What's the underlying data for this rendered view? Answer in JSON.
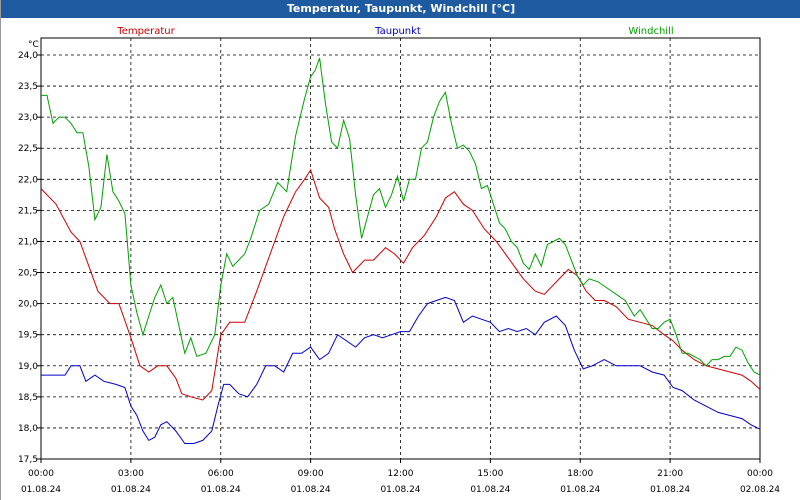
{
  "window": {
    "title": "Temperatur, Taupunkt, Windchill [°C]"
  },
  "chart_data": {
    "type": "line",
    "title": "Temperatur, Taupunkt, Windchill [°C]",
    "ylabel": "°C",
    "ylim": [
      17.5,
      24.0
    ],
    "ytick_labels": [
      "17,5",
      "18,0",
      "18,5",
      "19,0",
      "19,5",
      "20,0",
      "20,5",
      "21,0",
      "21,5",
      "22,0",
      "22,5",
      "23,0",
      "23,5",
      "24,0"
    ],
    "x_tick_labels": [
      {
        "time": "00:00",
        "date": "01.08.24"
      },
      {
        "time": "03:00",
        "date": "01.08.24"
      },
      {
        "time": "06:00",
        "date": "01.08.24"
      },
      {
        "time": "09:00",
        "date": "01.08.24"
      },
      {
        "time": "12:00",
        "date": "01.08.24"
      },
      {
        "time": "15:00",
        "date": "01.08.24"
      },
      {
        "time": "18:00",
        "date": "01.08.24"
      },
      {
        "time": "21:00",
        "date": "01.08.24"
      },
      {
        "time": "00:00",
        "date": "02.08.24"
      }
    ],
    "x_unit": "hours since 01.08.24 00:00",
    "grid": true,
    "series": [
      {
        "name": "Temperatur",
        "color": "#cc0000",
        "points": [
          [
            0,
            21.85
          ],
          [
            0.5,
            21.6
          ],
          [
            1,
            21.15
          ],
          [
            1.3,
            21.0
          ],
          [
            1.6,
            20.6
          ],
          [
            1.9,
            20.2
          ],
          [
            2.3,
            20.0
          ],
          [
            2.6,
            20.0
          ],
          [
            3,
            19.45
          ],
          [
            3.3,
            19.0
          ],
          [
            3.6,
            18.9
          ],
          [
            3.9,
            19.0
          ],
          [
            4.2,
            19.0
          ],
          [
            4.5,
            18.8
          ],
          [
            4.7,
            18.55
          ],
          [
            5,
            18.5
          ],
          [
            5.4,
            18.45
          ],
          [
            5.7,
            18.6
          ],
          [
            6,
            19.5
          ],
          [
            6.3,
            19.7
          ],
          [
            6.8,
            19.7
          ],
          [
            7.2,
            20.2
          ],
          [
            7.5,
            20.6
          ],
          [
            7.8,
            21.0
          ],
          [
            8.1,
            21.4
          ],
          [
            8.5,
            21.8
          ],
          [
            8.8,
            22.0
          ],
          [
            9,
            22.15
          ],
          [
            9.3,
            21.7
          ],
          [
            9.6,
            21.55
          ],
          [
            9.8,
            21.2
          ],
          [
            10.1,
            20.8
          ],
          [
            10.4,
            20.5
          ],
          [
            10.8,
            20.7
          ],
          [
            11.1,
            20.7
          ],
          [
            11.5,
            20.9
          ],
          [
            11.8,
            20.8
          ],
          [
            12.1,
            20.65
          ],
          [
            12.4,
            20.9
          ],
          [
            12.8,
            21.1
          ],
          [
            13.2,
            21.4
          ],
          [
            13.5,
            21.7
          ],
          [
            13.8,
            21.8
          ],
          [
            14.1,
            21.6
          ],
          [
            14.4,
            21.5
          ],
          [
            14.8,
            21.2
          ],
          [
            15.2,
            21.0
          ],
          [
            15.5,
            20.8
          ],
          [
            15.8,
            20.6
          ],
          [
            16.1,
            20.4
          ],
          [
            16.5,
            20.2
          ],
          [
            16.8,
            20.15
          ],
          [
            17.2,
            20.35
          ],
          [
            17.6,
            20.55
          ],
          [
            17.9,
            20.45
          ],
          [
            18.2,
            20.2
          ],
          [
            18.5,
            20.05
          ],
          [
            18.8,
            20.05
          ],
          [
            19.2,
            19.95
          ],
          [
            19.6,
            19.75
          ],
          [
            20,
            19.7
          ],
          [
            20.4,
            19.65
          ],
          [
            20.8,
            19.5
          ],
          [
            21.1,
            19.4
          ],
          [
            21.4,
            19.25
          ],
          [
            21.8,
            19.1
          ],
          [
            22.2,
            19.0
          ],
          [
            22.6,
            18.95
          ],
          [
            23,
            18.9
          ],
          [
            23.4,
            18.85
          ],
          [
            23.7,
            18.75
          ],
          [
            24,
            18.62
          ]
        ]
      },
      {
        "name": "Taupunkt",
        "color": "#0000cc",
        "points": [
          [
            0,
            18.85
          ],
          [
            0.5,
            18.85
          ],
          [
            0.8,
            18.85
          ],
          [
            1,
            19.0
          ],
          [
            1.3,
            19.0
          ],
          [
            1.5,
            18.75
          ],
          [
            1.8,
            18.85
          ],
          [
            2.1,
            18.75
          ],
          [
            2.5,
            18.7
          ],
          [
            2.8,
            18.65
          ],
          [
            3,
            18.35
          ],
          [
            3.2,
            18.2
          ],
          [
            3.4,
            17.95
          ],
          [
            3.6,
            17.8
          ],
          [
            3.8,
            17.85
          ],
          [
            4,
            18.05
          ],
          [
            4.2,
            18.1
          ],
          [
            4.5,
            17.95
          ],
          [
            4.8,
            17.75
          ],
          [
            5.1,
            17.75
          ],
          [
            5.4,
            17.8
          ],
          [
            5.7,
            17.95
          ],
          [
            5.9,
            18.35
          ],
          [
            6.1,
            18.7
          ],
          [
            6.3,
            18.7
          ],
          [
            6.6,
            18.55
          ],
          [
            6.9,
            18.5
          ],
          [
            7.2,
            18.7
          ],
          [
            7.5,
            19.0
          ],
          [
            7.8,
            19.0
          ],
          [
            8.1,
            18.9
          ],
          [
            8.4,
            19.2
          ],
          [
            8.7,
            19.2
          ],
          [
            9,
            19.3
          ],
          [
            9.3,
            19.1
          ],
          [
            9.6,
            19.2
          ],
          [
            9.9,
            19.5
          ],
          [
            10.2,
            19.4
          ],
          [
            10.5,
            19.3
          ],
          [
            10.8,
            19.45
          ],
          [
            11.1,
            19.5
          ],
          [
            11.4,
            19.45
          ],
          [
            11.7,
            19.5
          ],
          [
            12,
            19.55
          ],
          [
            12.3,
            19.55
          ],
          [
            12.6,
            19.8
          ],
          [
            12.9,
            20.0
          ],
          [
            13.2,
            20.05
          ],
          [
            13.5,
            20.1
          ],
          [
            13.8,
            20.05
          ],
          [
            14.1,
            19.7
          ],
          [
            14.4,
            19.8
          ],
          [
            14.7,
            19.75
          ],
          [
            15,
            19.7
          ],
          [
            15.3,
            19.55
          ],
          [
            15.6,
            19.6
          ],
          [
            15.9,
            19.55
          ],
          [
            16.2,
            19.6
          ],
          [
            16.5,
            19.5
          ],
          [
            16.8,
            19.7
          ],
          [
            17.2,
            19.8
          ],
          [
            17.5,
            19.65
          ],
          [
            17.8,
            19.25
          ],
          [
            18.1,
            18.95
          ],
          [
            18.4,
            19.0
          ],
          [
            18.8,
            19.1
          ],
          [
            19.2,
            19.0
          ],
          [
            19.6,
            19.0
          ],
          [
            20,
            19.0
          ],
          [
            20.4,
            18.9
          ],
          [
            20.8,
            18.85
          ],
          [
            21.1,
            18.65
          ],
          [
            21.4,
            18.6
          ],
          [
            21.8,
            18.45
          ],
          [
            22.2,
            18.35
          ],
          [
            22.6,
            18.25
          ],
          [
            23,
            18.2
          ],
          [
            23.4,
            18.15
          ],
          [
            23.7,
            18.05
          ],
          [
            24,
            17.98
          ]
        ]
      },
      {
        "name": "Windchill",
        "color": "#00a000",
        "points": [
          [
            0,
            23.35
          ],
          [
            0.2,
            23.35
          ],
          [
            0.4,
            22.9
          ],
          [
            0.6,
            23.0
          ],
          [
            0.8,
            23.0
          ],
          [
            1,
            22.9
          ],
          [
            1.2,
            22.75
          ],
          [
            1.4,
            22.75
          ],
          [
            1.6,
            22.2
          ],
          [
            1.8,
            21.35
          ],
          [
            2,
            21.55
          ],
          [
            2.2,
            22.4
          ],
          [
            2.4,
            21.8
          ],
          [
            2.6,
            21.65
          ],
          [
            2.8,
            21.45
          ],
          [
            3,
            20.3
          ],
          [
            3.2,
            19.85
          ],
          [
            3.4,
            19.5
          ],
          [
            3.6,
            19.8
          ],
          [
            3.8,
            20.1
          ],
          [
            4,
            20.3
          ],
          [
            4.2,
            20.0
          ],
          [
            4.4,
            20.1
          ],
          [
            4.6,
            19.65
          ],
          [
            4.8,
            19.2
          ],
          [
            5,
            19.45
          ],
          [
            5.2,
            19.15
          ],
          [
            5.5,
            19.2
          ],
          [
            5.8,
            19.5
          ],
          [
            6,
            20.3
          ],
          [
            6.2,
            20.8
          ],
          [
            6.4,
            20.6
          ],
          [
            6.6,
            20.7
          ],
          [
            6.8,
            20.8
          ],
          [
            7,
            21.05
          ],
          [
            7.3,
            21.5
          ],
          [
            7.6,
            21.6
          ],
          [
            7.9,
            21.95
          ],
          [
            8.2,
            21.8
          ],
          [
            8.5,
            22.7
          ],
          [
            8.8,
            23.3
          ],
          [
            9,
            23.65
          ],
          [
            9.15,
            23.75
          ],
          [
            9.3,
            23.95
          ],
          [
            9.5,
            23.2
          ],
          [
            9.7,
            22.6
          ],
          [
            9.9,
            22.5
          ],
          [
            10.1,
            22.95
          ],
          [
            10.3,
            22.65
          ],
          [
            10.5,
            21.75
          ],
          [
            10.7,
            21.05
          ],
          [
            10.9,
            21.4
          ],
          [
            11.1,
            21.75
          ],
          [
            11.3,
            21.85
          ],
          [
            11.5,
            21.55
          ],
          [
            11.7,
            21.75
          ],
          [
            11.9,
            22.05
          ],
          [
            12.1,
            21.65
          ],
          [
            12.3,
            22.0
          ],
          [
            12.5,
            22.0
          ],
          [
            12.7,
            22.5
          ],
          [
            12.9,
            22.6
          ],
          [
            13.1,
            23.0
          ],
          [
            13.3,
            23.25
          ],
          [
            13.5,
            23.4
          ],
          [
            13.7,
            22.9
          ],
          [
            13.9,
            22.5
          ],
          [
            14.1,
            22.55
          ],
          [
            14.3,
            22.45
          ],
          [
            14.5,
            22.25
          ],
          [
            14.7,
            21.85
          ],
          [
            14.9,
            21.9
          ],
          [
            15.1,
            21.6
          ],
          [
            15.3,
            21.3
          ],
          [
            15.5,
            21.2
          ],
          [
            15.7,
            21.0
          ],
          [
            15.9,
            20.9
          ],
          [
            16.1,
            20.65
          ],
          [
            16.3,
            20.55
          ],
          [
            16.5,
            20.8
          ],
          [
            16.7,
            20.6
          ],
          [
            16.9,
            20.95
          ],
          [
            17.1,
            21.0
          ],
          [
            17.3,
            21.05
          ],
          [
            17.5,
            20.95
          ],
          [
            17.7,
            20.7
          ],
          [
            17.9,
            20.45
          ],
          [
            18.1,
            20.3
          ],
          [
            18.3,
            20.4
          ],
          [
            18.6,
            20.35
          ],
          [
            18.9,
            20.25
          ],
          [
            19.2,
            20.15
          ],
          [
            19.5,
            20.05
          ],
          [
            19.8,
            19.8
          ],
          [
            20,
            19.9
          ],
          [
            20.2,
            19.75
          ],
          [
            20.4,
            19.6
          ],
          [
            20.6,
            19.6
          ],
          [
            20.8,
            19.7
          ],
          [
            21,
            19.75
          ],
          [
            21.2,
            19.5
          ],
          [
            21.4,
            19.2
          ],
          [
            21.6,
            19.2
          ],
          [
            21.8,
            19.15
          ],
          [
            22,
            19.1
          ],
          [
            22.2,
            19.0
          ],
          [
            22.4,
            19.1
          ],
          [
            22.6,
            19.1
          ],
          [
            22.8,
            19.15
          ],
          [
            23,
            19.15
          ],
          [
            23.2,
            19.3
          ],
          [
            23.4,
            19.25
          ],
          [
            23.6,
            19.05
          ],
          [
            23.8,
            18.9
          ],
          [
            24,
            18.85
          ]
        ]
      }
    ]
  }
}
